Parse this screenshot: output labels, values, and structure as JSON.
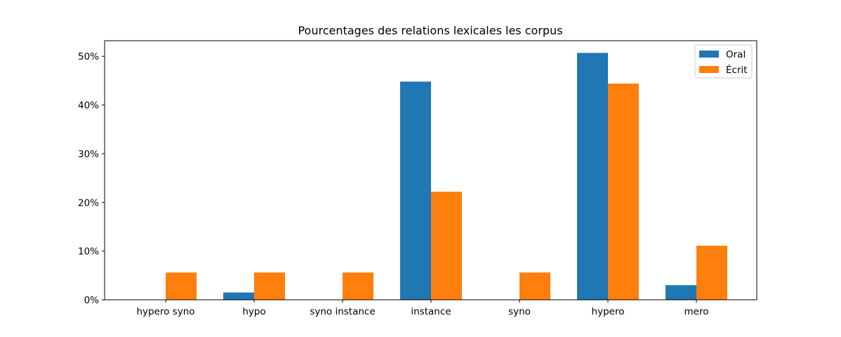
{
  "chart_data": {
    "type": "bar",
    "title": "Pourcentages des relations lexicales les corpus",
    "xlabel": "",
    "ylabel": "",
    "categories": [
      "hypero syno",
      "hypo",
      "syno instance",
      "instance",
      "syno",
      "hypero",
      "mero"
    ],
    "series": [
      {
        "name": "Oral",
        "color": "#1f77b4",
        "values": [
          0,
          1.5,
          0,
          44.8,
          0,
          50.7,
          3.0
        ]
      },
      {
        "name": "Écrit",
        "color": "#ff7f0e",
        "values": [
          5.6,
          5.6,
          5.6,
          22.2,
          5.6,
          44.4,
          11.1
        ]
      }
    ],
    "ylim": [
      0,
      53.2
    ],
    "yticks": [
      0,
      10,
      20,
      30,
      40,
      50
    ],
    "ytick_labels": [
      "0%",
      "10%",
      "20%",
      "30%",
      "40%",
      "50%"
    ],
    "legend_position": "upper-right",
    "grid": false
  }
}
